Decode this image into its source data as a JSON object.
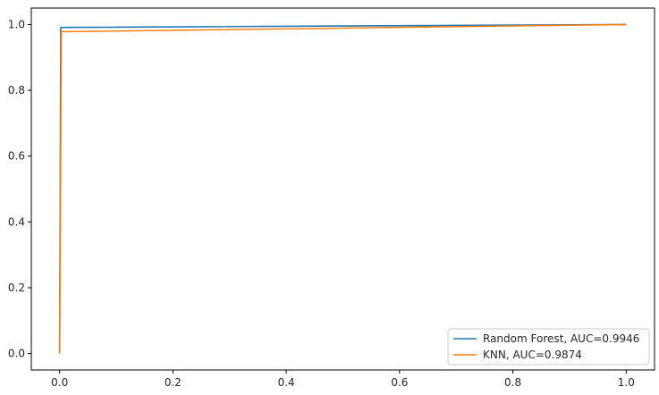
{
  "chart_data": {
    "type": "line",
    "title": "",
    "xlabel": "",
    "ylabel": "",
    "xlim": [
      -0.05,
      1.05
    ],
    "ylim": [
      -0.05,
      1.05
    ],
    "xticks": [
      0.0,
      0.2,
      0.4,
      0.6,
      0.8,
      1.0
    ],
    "xtick_labels": [
      "0.0",
      "0.2",
      "0.4",
      "0.6",
      "0.8",
      "1.0"
    ],
    "yticks": [
      0.0,
      0.2,
      0.4,
      0.6,
      0.8,
      1.0
    ],
    "ytick_labels": [
      "0.0",
      "0.2",
      "0.4",
      "0.6",
      "0.8",
      "1.0"
    ],
    "grid": false,
    "legend_position": "bottom-right",
    "series": [
      {
        "name": "Random Forest, AUC=0.9946",
        "color": "#1f77b4",
        "x": [
          0.0,
          0.002,
          1.0
        ],
        "y": [
          0.0,
          0.991,
          1.0
        ]
      },
      {
        "name": "KNN, AUC=0.9874",
        "color": "#ff7f0e",
        "x": [
          0.0,
          0.003,
          1.0
        ],
        "y": [
          0.0,
          0.978,
          1.0
        ]
      }
    ]
  }
}
